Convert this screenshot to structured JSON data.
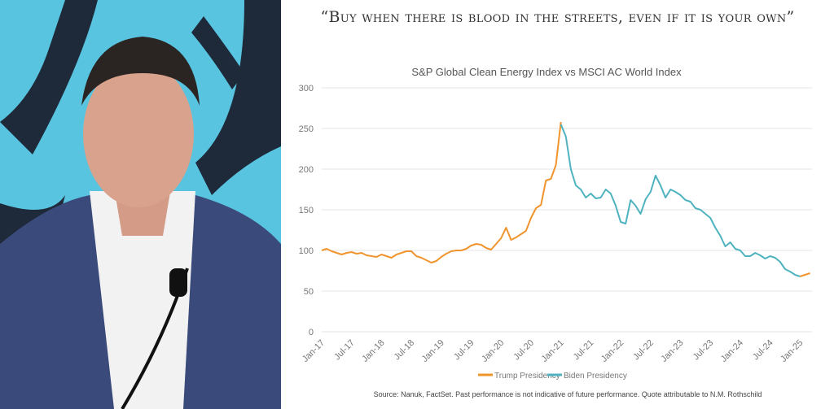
{
  "slide": {
    "quote": "“Buy when there is blood in the streets, even if it is your own”",
    "source": "Source:  Nanuk, FactSet. Past performance is not indicative of future performance.  Quote attributable to N.M. Rothschild"
  },
  "chart_data": {
    "type": "line",
    "title": "S&P Global Clean Energy Index vs MSCI AC World Index",
    "xlabel": "",
    "ylabel": "",
    "ylim": [
      0,
      300
    ],
    "yticks": [
      0,
      50,
      100,
      150,
      200,
      250,
      300
    ],
    "xticks": [
      "Jan-17",
      "Jul-17",
      "Jan-18",
      "Jul-18",
      "Jan-19",
      "Jul-19",
      "Jan-20",
      "Jul-20",
      "Jan-21",
      "Jul-21",
      "Jan-22",
      "Jul-22",
      "Jan-23",
      "Jul-23",
      "Jan-24",
      "Jul-24",
      "Jan-25"
    ],
    "grid": true,
    "legend_position": "bottom",
    "colors": {
      "Trump Presidency": "#f0952e",
      "Biden Presidency": "#4fb3bf"
    },
    "series": [
      {
        "name": "Trump Presidency",
        "points": [
          [
            "2017-01",
            100
          ],
          [
            "2017-02",
            102
          ],
          [
            "2017-03",
            99
          ],
          [
            "2017-04",
            97
          ],
          [
            "2017-05",
            95
          ],
          [
            "2017-06",
            97
          ],
          [
            "2017-07",
            98
          ],
          [
            "2017-08",
            96
          ],
          [
            "2017-09",
            97
          ],
          [
            "2017-10",
            94
          ],
          [
            "2017-11",
            93
          ],
          [
            "2017-12",
            92
          ],
          [
            "2018-01",
            95
          ],
          [
            "2018-02",
            93
          ],
          [
            "2018-03",
            91
          ],
          [
            "2018-04",
            95
          ],
          [
            "2018-05",
            97
          ],
          [
            "2018-06",
            99
          ],
          [
            "2018-07",
            99
          ],
          [
            "2018-08",
            93
          ],
          [
            "2018-09",
            91
          ],
          [
            "2018-10",
            88
          ],
          [
            "2018-11",
            85
          ],
          [
            "2018-12",
            87
          ],
          [
            "2019-01",
            92
          ],
          [
            "2019-02",
            96
          ],
          [
            "2019-03",
            99
          ],
          [
            "2019-04",
            100
          ],
          [
            "2019-05",
            100
          ],
          [
            "2019-06",
            102
          ],
          [
            "2019-07",
            106
          ],
          [
            "2019-08",
            108
          ],
          [
            "2019-09",
            107
          ],
          [
            "2019-10",
            103
          ],
          [
            "2019-11",
            101
          ],
          [
            "2019-12",
            108
          ],
          [
            "2020-01",
            115
          ],
          [
            "2020-02",
            128
          ],
          [
            "2020-03",
            113
          ],
          [
            "2020-04",
            116
          ],
          [
            "2020-05",
            120
          ],
          [
            "2020-06",
            124
          ],
          [
            "2020-07",
            140
          ],
          [
            "2020-08",
            152
          ],
          [
            "2020-09",
            156
          ],
          [
            "2020-10",
            186
          ],
          [
            "2020-11",
            188
          ],
          [
            "2020-12",
            205
          ],
          [
            "2021-01",
            258
          ]
        ]
      },
      {
        "name": "Biden Presidency",
        "points": [
          [
            "2021-01",
            255
          ],
          [
            "2021-02",
            240
          ],
          [
            "2021-03",
            200
          ],
          [
            "2021-04",
            180
          ],
          [
            "2021-05",
            175
          ],
          [
            "2021-06",
            165
          ],
          [
            "2021-07",
            170
          ],
          [
            "2021-08",
            164
          ],
          [
            "2021-09",
            165
          ],
          [
            "2021-10",
            175
          ],
          [
            "2021-11",
            170
          ],
          [
            "2021-12",
            155
          ],
          [
            "2022-01",
            135
          ],
          [
            "2022-02",
            133
          ],
          [
            "2022-03",
            162
          ],
          [
            "2022-04",
            155
          ],
          [
            "2022-05",
            145
          ],
          [
            "2022-06",
            163
          ],
          [
            "2022-07",
            172
          ],
          [
            "2022-08",
            192
          ],
          [
            "2022-09",
            180
          ],
          [
            "2022-10",
            165
          ],
          [
            "2022-11",
            175
          ],
          [
            "2022-12",
            172
          ],
          [
            "2023-01",
            168
          ],
          [
            "2023-02",
            162
          ],
          [
            "2023-03",
            160
          ],
          [
            "2023-04",
            152
          ],
          [
            "2023-05",
            150
          ],
          [
            "2023-06",
            145
          ],
          [
            "2023-07",
            140
          ],
          [
            "2023-08",
            128
          ],
          [
            "2023-09",
            118
          ],
          [
            "2023-10",
            105
          ],
          [
            "2023-11",
            110
          ],
          [
            "2023-12",
            102
          ],
          [
            "2024-01",
            100
          ],
          [
            "2024-02",
            93
          ],
          [
            "2024-03",
            93
          ],
          [
            "2024-04",
            97
          ],
          [
            "2024-05",
            94
          ],
          [
            "2024-06",
            90
          ],
          [
            "2024-07",
            93
          ],
          [
            "2024-08",
            91
          ],
          [
            "2024-09",
            86
          ],
          [
            "2024-10",
            77
          ],
          [
            "2024-11",
            74
          ],
          [
            "2024-12",
            70
          ],
          [
            "2025-01",
            68
          ]
        ]
      },
      {
        "name": "Trump Presidency",
        "points": [
          [
            "2025-01",
            68
          ],
          [
            "2025-02",
            70
          ],
          [
            "2025-03",
            72
          ]
        ]
      }
    ]
  }
}
